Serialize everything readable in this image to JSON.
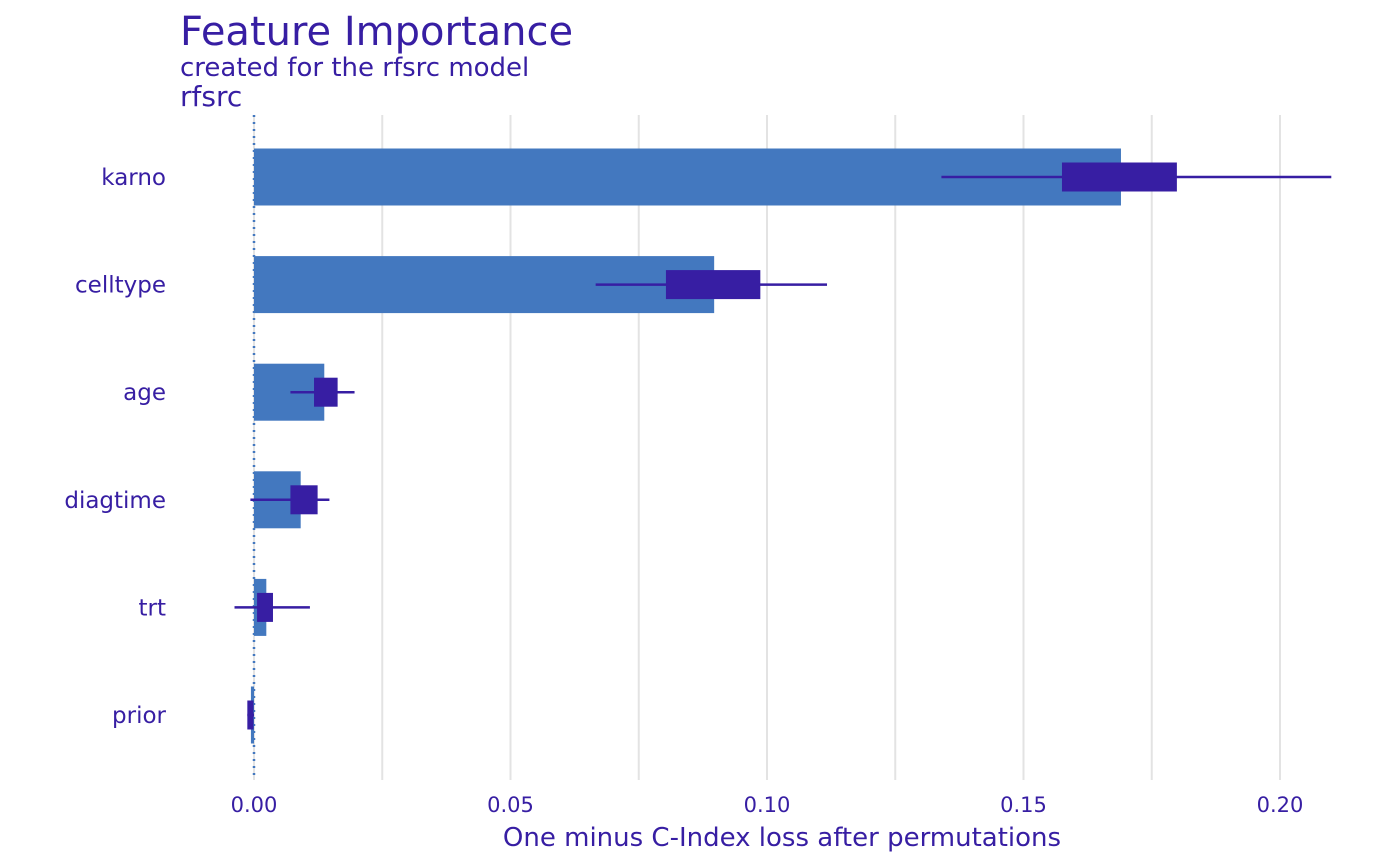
{
  "header": {
    "title": "Feature Importance",
    "subtitle": "created for the rfsrc model",
    "model_label": "rfsrc"
  },
  "colors": {
    "bar": "#4378bf",
    "box": "#371ea3",
    "text": "#371ea3",
    "grid": "#e3e3e3",
    "baseline": "#4378bf"
  },
  "chart_data": {
    "type": "bar",
    "orientation": "horizontal",
    "title": "Feature Importance",
    "subtitle": "created for the rfsrc model",
    "xlabel": "One minus C-Index loss after permutations",
    "ylabel": "",
    "xlim": [
      -0.015,
      0.215
    ],
    "x_ticks": [
      0.0,
      0.05,
      0.1,
      0.15,
      0.2
    ],
    "x_tick_labels": [
      "0.00",
      "0.05",
      "0.10",
      "0.15",
      "0.20"
    ],
    "grid": true,
    "baseline": 0.0,
    "categories": [
      "karno",
      "celltype",
      "age",
      "diagtime",
      "trt",
      "prior"
    ],
    "values": [
      0.169,
      0.0897,
      0.0137,
      0.0091,
      0.0024,
      -0.0006
    ],
    "boxplots": [
      {
        "min": 0.134,
        "q1": 0.1575,
        "q3": 0.1799,
        "max": 0.21
      },
      {
        "min": 0.0666,
        "q1": 0.0803,
        "q3": 0.0987,
        "max": 0.1117
      },
      {
        "min": 0.0071,
        "q1": 0.0117,
        "q3": 0.0163,
        "max": 0.0196
      },
      {
        "min": -0.0007,
        "q1": 0.0071,
        "q3": 0.0124,
        "max": 0.0147
      },
      {
        "min": -0.0038,
        "q1": 0.0006,
        "q3": 0.0037,
        "max": 0.0109
      },
      {
        "min": -0.0013,
        "q1": -0.0013,
        "q3": -0.0001,
        "max": 0.0
      }
    ]
  }
}
